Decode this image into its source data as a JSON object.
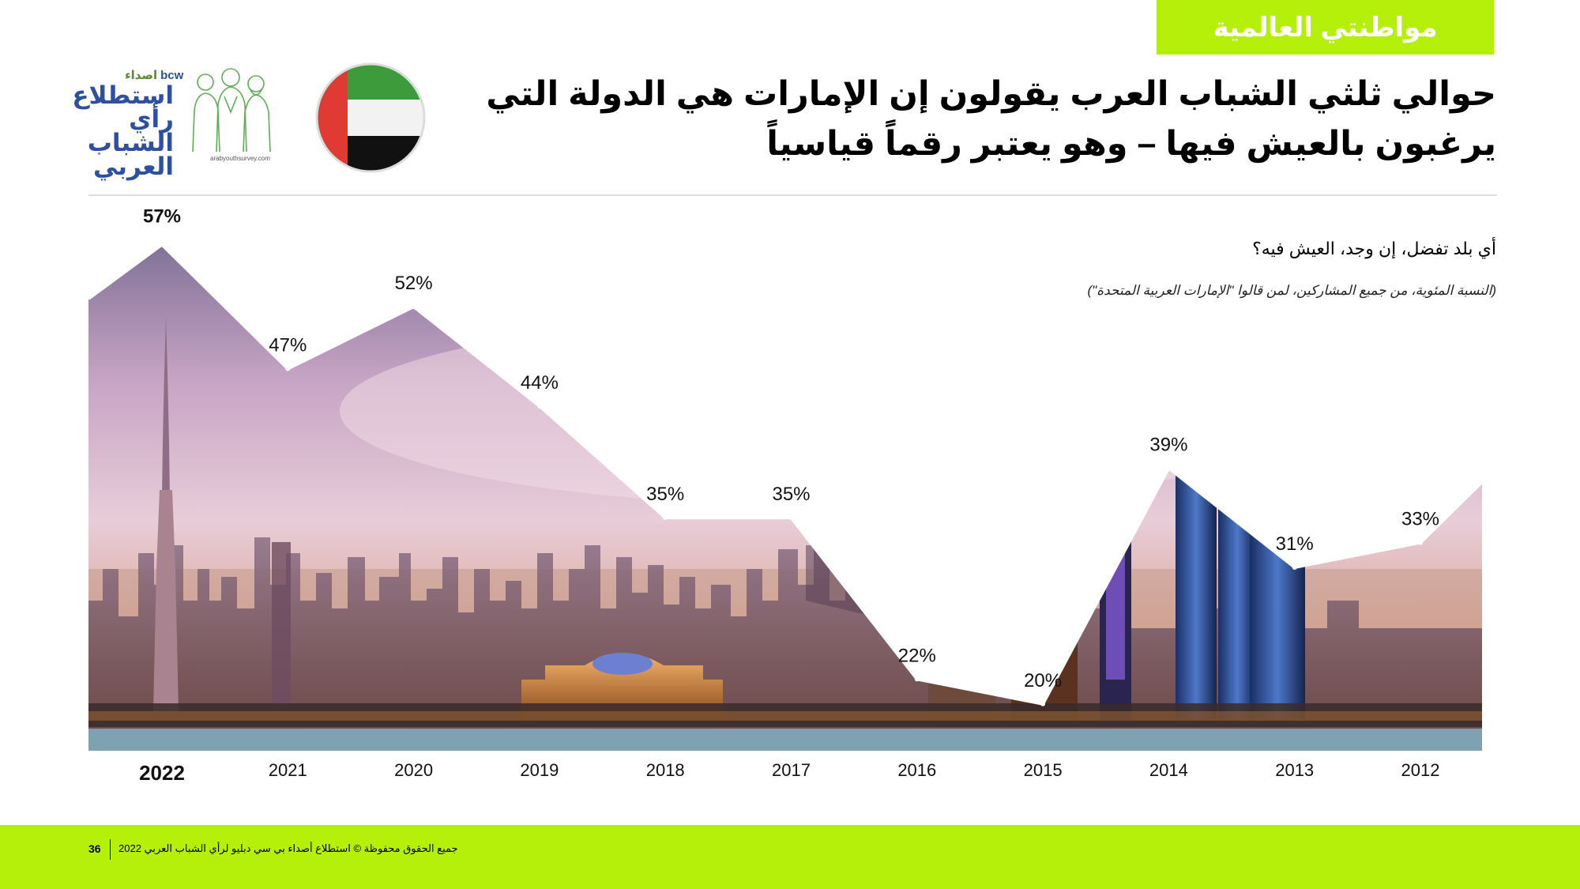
{
  "section_tag": "مواطنتي العالمية",
  "colors": {
    "accent": "#b4f00a",
    "flag_green": "#3e9b3c",
    "flag_red": "#e03a35",
    "flag_black": "#111111"
  },
  "logo": {
    "brand_small": "اصداء",
    "brand_bcw": "bcw",
    "name": "استطلاع رأي الشباب العربي",
    "url": "arabyouthsurvey.com",
    "icon": "people-illustration-icon"
  },
  "flag_icon": "uae-flag-icon",
  "title": "حوالي ثلثي الشباب العرب يقولون إن الإمارات هي الدولة التي يرغبون بالعيش فيها – وهو يعتبر رقماً قياسياً",
  "question": "أي بلد تفضل، إن وجد، العيش فيه؟",
  "note": "(النسبة المئوية، من جميع المشاركين، لمن قالوا \"الإمارات العربية المتحدة\")",
  "chart_data": {
    "type": "area",
    "title": "",
    "xlabel": "",
    "ylabel": "",
    "x": [
      "2022",
      "2021",
      "2020",
      "2019",
      "2018",
      "2017",
      "2016",
      "2015",
      "2014",
      "2013",
      "2012"
    ],
    "series": [
      {
        "values": [
          57,
          47,
          52,
          44,
          35,
          35,
          22,
          20,
          39,
          31,
          33
        ]
      }
    ],
    "labels": [
      "57%",
      "47%",
      "52%",
      "44%",
      "35%",
      "35%",
      "22%",
      "20%",
      "39%",
      "31%",
      "33%"
    ],
    "highlight": "2022",
    "grid": false,
    "legend": "none"
  },
  "footer": {
    "page": "36",
    "copyright": "جميع الحقوق محفوظة © استطلاع أصداء بي سي دبليو لرأي الشباب العربي 2022"
  }
}
